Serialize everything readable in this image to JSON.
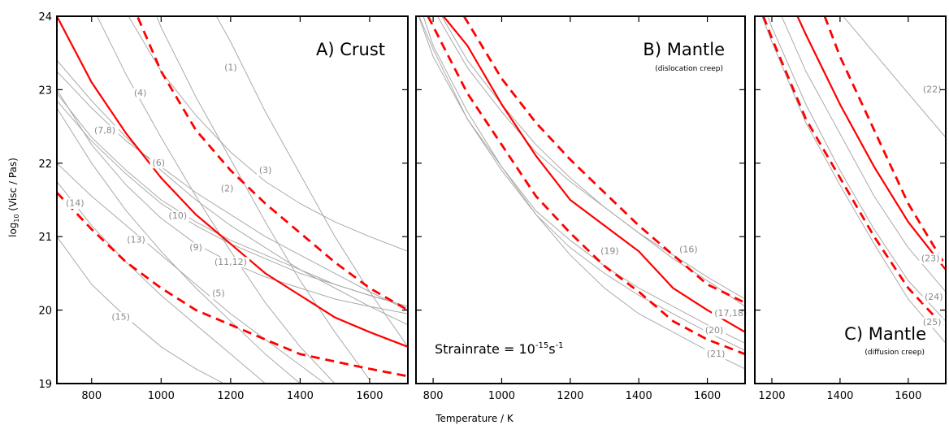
{
  "chart_data": {
    "type": "line",
    "ylabel_main": "log",
    "ylabel_sub": "10",
    "ylabel_rest": " (Visc / Pas)",
    "xlabel": "Temperature / K",
    "strainrate_prefix": "Strainrate = 10",
    "strainrate_exp": "-15",
    "strainrate_unit": "s",
    "strainrate_unit_exp": "-1",
    "colors": {
      "reference": "#aaaaaa",
      "bounds": "#ff0000"
    },
    "ylim": [
      19,
      24
    ],
    "yticks": [
      "19",
      "20",
      "21",
      "22",
      "23",
      "24"
    ],
    "panels": [
      {
        "letter": "A)",
        "title": "Crust",
        "subtitle": "",
        "xlim": [
          700,
          1710
        ],
        "xticks": [
          800,
          1000,
          1200,
          1400,
          1600
        ],
        "gray_curves": [
          {
            "label": "(1)",
            "x": [
              700,
              1100,
              1200,
              1300,
              1400,
              1500,
              1600,
              1710
            ],
            "y": [
              27.0,
              24.5,
              23.65,
              22.7,
              21.85,
              21.0,
              20.25,
              19.5
            ]
          },
          {
            "label": "(2)",
            "x": [
              700,
              900,
              1000,
              1100,
              1200,
              1300,
              1400,
              1500,
              1600
            ],
            "y": [
              26.9,
              25.0,
              23.85,
              22.9,
              22.05,
              21.2,
              20.4,
              19.7,
              19.05
            ]
          },
          {
            "label": "(3)",
            "x": [
              700,
              900,
              1000,
              1100,
              1200,
              1300,
              1400,
              1500,
              1600,
              1710
            ],
            "y": [
              26.2,
              24.05,
              23.25,
              22.65,
              22.15,
              21.75,
              21.45,
              21.2,
              21.0,
              20.8
            ]
          },
          {
            "label": "(4)",
            "x": [
              700,
              800,
              900,
              1000,
              1100,
              1200,
              1300,
              1400,
              1500
            ],
            "y": [
              25.3,
              24.15,
              23.2,
              22.35,
              21.55,
              20.8,
              20.1,
              19.5,
              19.0
            ]
          },
          {
            "label": "(7,8)",
            "x": [
              700,
              800,
              900,
              1000,
              1100,
              1200,
              1300,
              1400,
              1500,
              1600,
              1710
            ],
            "y": [
              23.25,
              22.75,
              22.3,
              21.95,
              21.6,
              21.3,
              21.0,
              20.75,
              20.5,
              20.25,
              20.0
            ]
          },
          {
            "label": "(6)",
            "x": [
              700,
              800,
              900,
              1000,
              1100,
              1200,
              1300,
              1400,
              1500,
              1600,
              1710
            ],
            "y": [
              23.4,
              22.85,
              22.35,
              21.9,
              21.5,
              21.15,
              20.85,
              20.55,
              20.3,
              20.05,
              19.8
            ]
          },
          {
            "label": "(10)",
            "x": [
              700,
              800,
              900,
              1000,
              1100,
              1200,
              1300,
              1400,
              1500,
              1600,
              1710
            ],
            "y": [
              22.85,
              22.3,
              21.85,
              21.45,
              21.15,
              20.9,
              20.7,
              20.5,
              20.35,
              20.2,
              20.05
            ]
          },
          {
            "label": "(11,12)",
            "x": [
              700,
              800,
              900,
              1000,
              1100,
              1200,
              1300,
              1400,
              1500,
              1600,
              1710
            ],
            "y": [
              22.95,
              22.35,
              21.9,
              21.5,
              21.2,
              20.95,
              20.75,
              20.55,
              20.35,
              20.2,
              20.05
            ]
          },
          {
            "label": "(9)",
            "x": [
              700,
              800,
              900,
              1000,
              1100,
              1200,
              1300,
              1400,
              1500,
              1600,
              1710
            ],
            "y": [
              23.0,
              22.25,
              21.7,
              21.25,
              20.9,
              20.65,
              20.45,
              20.3,
              20.15,
              20.05,
              19.95
            ]
          },
          {
            "label": "(13)",
            "x": [
              700,
              800,
              900,
              1000,
              1100,
              1200,
              1300,
              1400,
              1500
            ],
            "y": [
              22.0,
              21.55,
              21.15,
              20.75,
              20.35,
              19.95,
              19.6,
              19.25,
              18.9
            ]
          },
          {
            "label": "(5)",
            "x": [
              700,
              800,
              900,
              1000,
              1100,
              1200,
              1300,
              1400
            ],
            "y": [
              22.75,
              22.0,
              21.35,
              20.8,
              20.3,
              19.85,
              19.4,
              19.0
            ]
          },
          {
            "label": "(14)",
            "x": [
              700,
              800,
              900,
              1000,
              1100,
              1200,
              1300
            ],
            "y": [
              21.75,
              21.15,
              20.65,
              20.2,
              19.8,
              19.4,
              19.0
            ]
          },
          {
            "label": "(15)",
            "x": [
              700,
              800,
              900,
              1000,
              1100,
              1200
            ],
            "y": [
              21.0,
              20.35,
              19.9,
              19.5,
              19.2,
              18.95
            ]
          }
        ],
        "red_solid": {
          "x": [
            700,
            800,
            900,
            1000,
            1100,
            1200,
            1300,
            1400,
            1500,
            1600,
            1710
          ],
          "y": [
            24.0,
            23.1,
            22.4,
            21.8,
            21.3,
            20.9,
            20.5,
            20.2,
            19.9,
            19.7,
            19.5
          ]
        },
        "red_dashed": [
          {
            "x": [
              900,
              1000,
              1100,
              1200,
              1300,
              1400,
              1500,
              1600,
              1710
            ],
            "y": [
              24.35,
              23.25,
              22.45,
              21.9,
              21.45,
              21.05,
              20.65,
              20.3,
              20.0
            ]
          },
          {
            "x": [
              700,
              800,
              900,
              1000,
              1100,
              1200,
              1300,
              1400,
              1500,
              1600,
              1710
            ],
            "y": [
              21.6,
              21.1,
              20.65,
              20.3,
              20.0,
              19.8,
              19.6,
              19.4,
              19.3,
              19.2,
              19.1
            ]
          }
        ]
      },
      {
        "letter": "B)",
        "title": "Mantle",
        "subtitle": "(dislocation creep)",
        "xlim": [
          750,
          1710
        ],
        "xticks": [
          800,
          1000,
          1200,
          1400,
          1600
        ],
        "gray_curves": [
          {
            "label": "(16)",
            "x": [
              750,
              800,
              900,
              1000,
              1100,
              1200,
              1300,
              1400,
              1500,
              1600,
              1710
            ],
            "y": [
              24.55,
              24.1,
              23.3,
              22.7,
              22.15,
              21.75,
              21.4,
              21.05,
              20.75,
              20.45,
              20.15
            ]
          },
          {
            "label": "(17,18)",
            "x": [
              750,
              800,
              900,
              1000,
              1100,
              1200,
              1300,
              1400,
              1500,
              1600,
              1710
            ],
            "y": [
              24.65,
              24.2,
              23.4,
              22.8,
              22.25,
              21.8,
              21.4,
              21.05,
              20.7,
              20.4,
              20.05
            ]
          },
          {
            "label": "(19)",
            "x": [
              750,
              800,
              900,
              1000,
              1100,
              1200,
              1300,
              1400,
              1500,
              1600,
              1710
            ],
            "y": [
              24.1,
              23.45,
              22.6,
              21.95,
              21.35,
              20.95,
              20.6,
              20.3,
              20.05,
              19.8,
              19.55
            ]
          },
          {
            "label": "(20)",
            "x": [
              750,
              800,
              900,
              1000,
              1100,
              1200,
              1300,
              1400,
              1500,
              1600,
              1710
            ],
            "y": [
              24.1,
              23.55,
              22.6,
              21.9,
              21.3,
              20.85,
              20.5,
              20.2,
              19.95,
              19.7,
              19.45
            ]
          },
          {
            "label": "(21)",
            "x": [
              750,
              800,
              900,
              1000,
              1100,
              1200,
              1300,
              1400,
              1500,
              1600,
              1710
            ],
            "y": [
              24.3,
              23.6,
              22.7,
              21.95,
              21.3,
              20.75,
              20.3,
              19.95,
              19.7,
              19.45,
              19.2
            ]
          }
        ],
        "red_solid": {
          "x": [
            830,
            900,
            1000,
            1100,
            1200,
            1300,
            1400,
            1500,
            1600,
            1710
          ],
          "y": [
            24.0,
            23.6,
            22.8,
            22.1,
            21.5,
            21.15,
            20.8,
            20.3,
            20.0,
            19.7
          ]
        },
        "red_dashed": [
          {
            "x": [
              890,
              1000,
              1100,
              1200,
              1300,
              1400,
              1500,
              1600,
              1710
            ],
            "y": [
              24.0,
              23.15,
              22.55,
              22.05,
              21.6,
              21.15,
              20.75,
              20.35,
              20.1
            ]
          },
          {
            "x": [
              785,
              900,
              1000,
              1100,
              1200,
              1300,
              1400,
              1500,
              1600,
              1710
            ],
            "y": [
              24.0,
              22.95,
              22.25,
              21.55,
              21.05,
              20.6,
              20.25,
              19.85,
              19.6,
              19.4
            ]
          }
        ]
      },
      {
        "letter": "C)",
        "title": "Mantle",
        "subtitle": "(diffusion creep)",
        "xlim": [
          1150,
          1710
        ],
        "xticks": [
          1200,
          1400,
          1600
        ],
        "gray_curves": [
          {
            "label": "(22)",
            "x": [
              1150,
              1300,
              1400,
              1500,
              1600,
              1710
            ],
            "y": [
              26.0,
              24.7,
              24.05,
              23.5,
              22.95,
              22.35
            ]
          },
          {
            "label": "(23)",
            "x": [
              1150,
              1200,
              1300,
              1400,
              1500,
              1600,
              1710
            ],
            "y": [
              24.85,
              24.3,
              23.25,
              22.4,
              21.55,
              20.85,
              20.25
            ]
          },
          {
            "label": "(24)",
            "x": [
              1150,
              1200,
              1300,
              1400,
              1500,
              1600,
              1710
            ],
            "y": [
              24.45,
              23.85,
              22.8,
              21.9,
              21.1,
              20.4,
              19.85
            ]
          },
          {
            "label": "(25)",
            "x": [
              1150,
              1200,
              1300,
              1400,
              1500,
              1600,
              1710
            ],
            "y": [
              24.25,
              23.65,
              22.55,
              21.7,
              20.9,
              20.15,
              19.55
            ]
          }
        ],
        "red_solid": {
          "x": [
            1275,
            1300,
            1400,
            1500,
            1600,
            1710
          ],
          "y": [
            24.0,
            23.75,
            22.8,
            21.95,
            21.2,
            20.55
          ]
        },
        "red_dashed": [
          {
            "x": [
              1355,
              1400,
              1500,
              1600,
              1710
            ],
            "y": [
              24.0,
              23.45,
              22.45,
              21.45,
              20.6
            ]
          },
          {
            "x": [
              1175,
              1200,
              1300,
              1400,
              1500,
              1600,
              1710
            ],
            "y": [
              24.0,
              23.7,
              22.6,
              21.8,
              21.0,
              20.3,
              19.75
            ]
          }
        ]
      }
    ]
  }
}
